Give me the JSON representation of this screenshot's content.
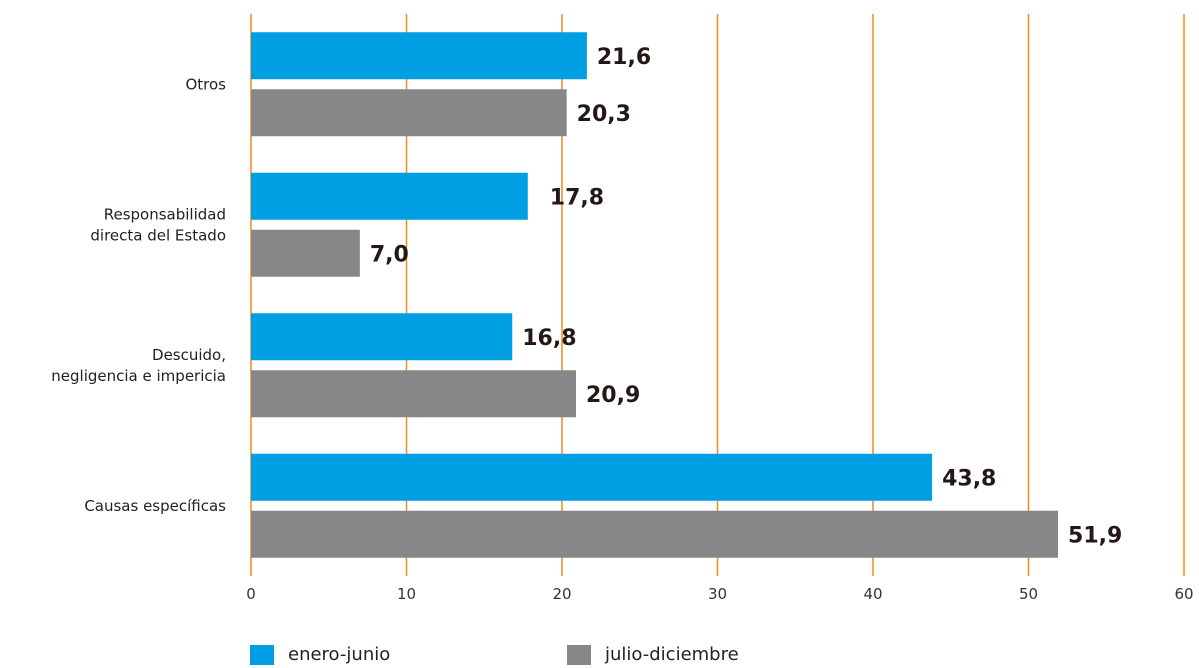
{
  "chart_data": {
    "type": "bar",
    "orientation": "horizontal",
    "categories": [
      [
        "Otros"
      ],
      [
        "Responsabilidad",
        "directa del Estado"
      ],
      [
        "Descuido,",
        "negligencia e impericia"
      ],
      [
        "Causas específicas"
      ]
    ],
    "series": [
      {
        "name": "enero-junio",
        "color": "#009fe3",
        "values": [
          21.6,
          17.8,
          16.8,
          43.8
        ],
        "labels": [
          "21,6",
          "17,8",
          "16,8",
          "43,8"
        ]
      },
      {
        "name": "julio-diciembre",
        "color": "#878689",
        "values": [
          20.3,
          7.0,
          20.9,
          51.9
        ],
        "labels": [
          "20,3",
          "7,0",
          "20,9",
          "51,9"
        ]
      }
    ],
    "xlim": [
      0,
      60
    ],
    "xticks": [
      "0",
      "10",
      "20",
      "30",
      "40",
      "50",
      "60"
    ],
    "grid": true,
    "grid_color": "#f08c1e",
    "legend_position": "bottom"
  }
}
